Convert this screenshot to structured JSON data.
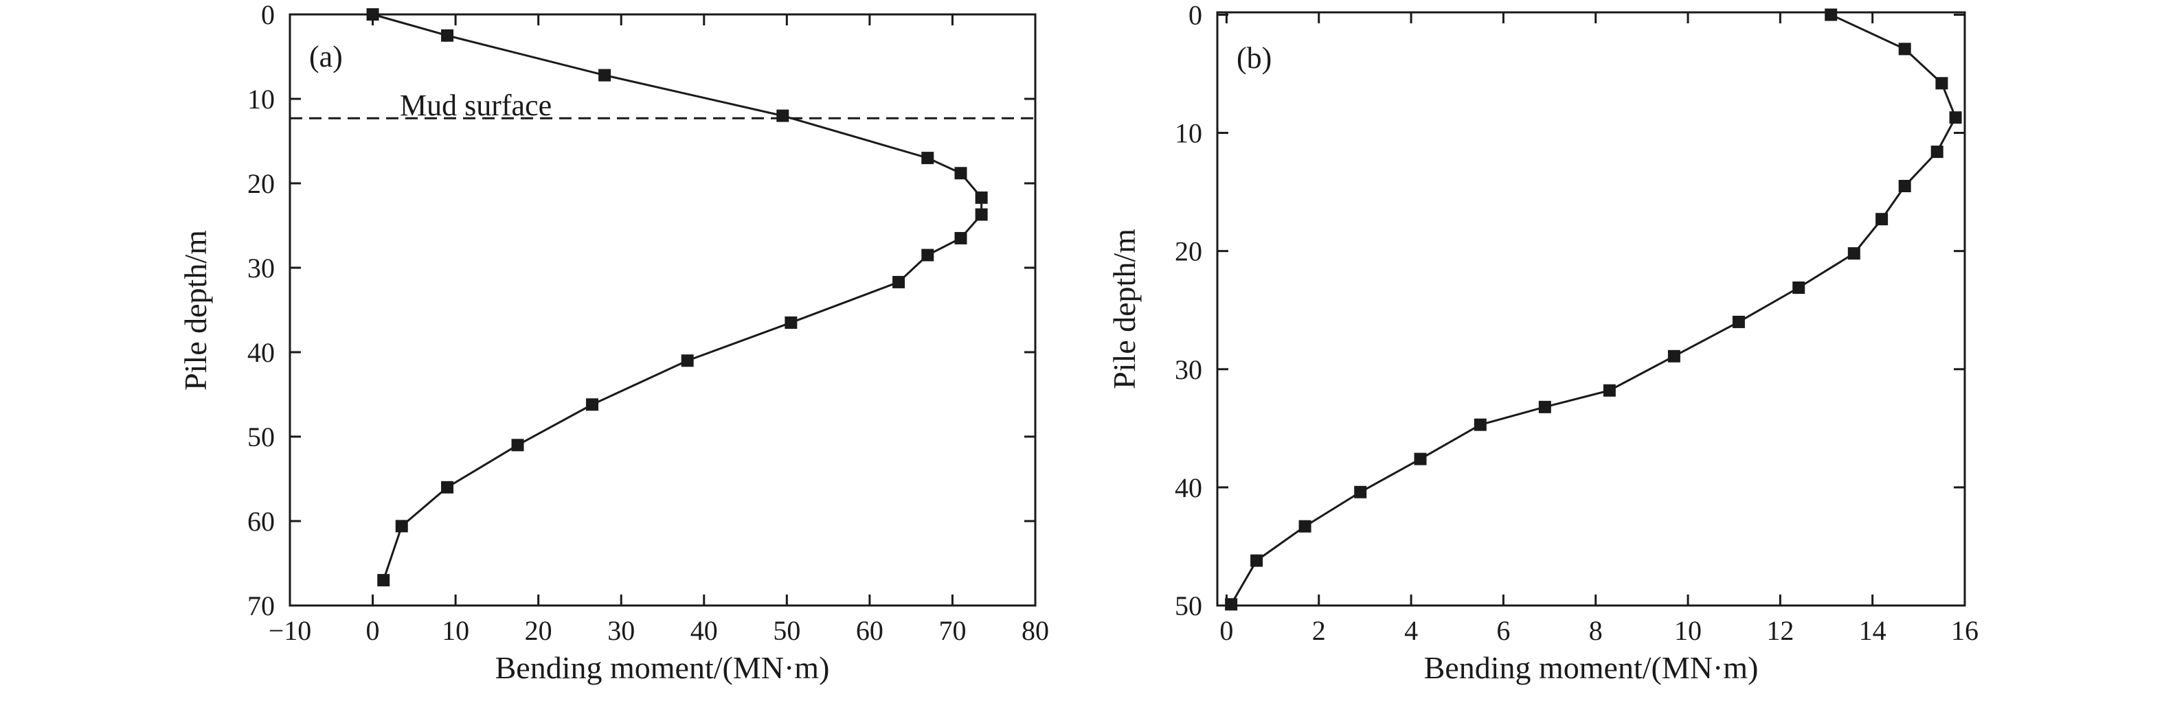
{
  "chart_data": [
    {
      "type": "line",
      "panel_label": "(a)",
      "xlabel": "Bending moment/(MN·m)",
      "ylabel": "Pile depth/m",
      "xlim": [
        -10,
        80
      ],
      "ylim": [
        70,
        0
      ],
      "xticks": [
        -10,
        0,
        10,
        20,
        30,
        40,
        50,
        60,
        70,
        80
      ],
      "xtick_labels": [
        "−10",
        "0",
        "10",
        "20",
        "30",
        "40",
        "50",
        "60",
        "70",
        "80"
      ],
      "yticks": [
        0,
        10,
        20,
        30,
        40,
        50,
        60,
        70
      ],
      "ytick_labels": [
        "0",
        "10",
        "20",
        "30",
        "40",
        "50",
        "60",
        "70"
      ],
      "grid": false,
      "marker": "square",
      "annotation": {
        "text": "Mud surface",
        "depth": 12.3,
        "style": "dashed"
      },
      "series": [
        {
          "points": [
            [
              0,
              0
            ],
            [
              9,
              2.5
            ],
            [
              28,
              7.2
            ],
            [
              49.5,
              12
            ],
            [
              67,
              17
            ],
            [
              71,
              18.8
            ],
            [
              73.5,
              21.7
            ],
            [
              73.5,
              23.7
            ],
            [
              71,
              26.5
            ],
            [
              67,
              28.5
            ],
            [
              63.5,
              31.7
            ],
            [
              50.5,
              36.5
            ],
            [
              38,
              41
            ],
            [
              26.5,
              46.2
            ],
            [
              17.5,
              51
            ],
            [
              9,
              56
            ],
            [
              3.5,
              60.6
            ],
            [
              1.3,
              67
            ]
          ]
        }
      ]
    },
    {
      "type": "line",
      "panel_label": "(b)",
      "xlabel": "Bending moment/(MN·m)",
      "ylabel": "Pile depth/m",
      "xlim": [
        -0.2,
        16
      ],
      "ylim": [
        50,
        -0.2
      ],
      "xticks": [
        0,
        2,
        4,
        6,
        8,
        10,
        12,
        14,
        16
      ],
      "xtick_labels": [
        "0",
        "2",
        "4",
        "6",
        "8",
        "10",
        "12",
        "14",
        "16"
      ],
      "yticks": [
        0,
        10,
        20,
        30,
        40,
        50
      ],
      "ytick_labels": [
        "0",
        "10",
        "20",
        "30",
        "40",
        "50"
      ],
      "grid": false,
      "marker": "square",
      "series": [
        {
          "points": [
            [
              13.1,
              0
            ],
            [
              14.7,
              2.9
            ],
            [
              15.5,
              5.8
            ],
            [
              15.8,
              8.7
            ],
            [
              15.4,
              11.6
            ],
            [
              14.7,
              14.5
            ],
            [
              14.2,
              17.3
            ],
            [
              13.6,
              20.2
            ],
            [
              12.4,
              23.1
            ],
            [
              11.1,
              26
            ],
            [
              9.7,
              28.9
            ],
            [
              8.3,
              31.8
            ],
            [
              6.9,
              33.2
            ],
            [
              5.5,
              34.7
            ],
            [
              4.2,
              37.6
            ],
            [
              2.9,
              40.4
            ],
            [
              1.7,
              43.3
            ],
            [
              0.65,
              46.2
            ],
            [
              0.1,
              49.9
            ]
          ]
        }
      ]
    }
  ]
}
